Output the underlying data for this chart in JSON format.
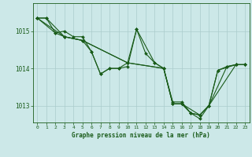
{
  "background_color": "#cce8e8",
  "grid_color": "#aacccc",
  "line_color": "#1a5c1a",
  "title": "Graphe pression niveau de la mer (hPa)",
  "xlim": [
    -0.5,
    23.5
  ],
  "ylim": [
    1012.55,
    1015.75
  ],
  "yticks": [
    1013,
    1014,
    1015
  ],
  "xticks": [
    0,
    1,
    2,
    3,
    4,
    5,
    6,
    7,
    8,
    9,
    10,
    11,
    12,
    13,
    14,
    15,
    16,
    17,
    18,
    19,
    20,
    21,
    22,
    23
  ],
  "series": [
    {
      "x": [
        0,
        1,
        2,
        3,
        4,
        5,
        6,
        7,
        8,
        9,
        10,
        11,
        12,
        13,
        14,
        15,
        16,
        17,
        18,
        19,
        20,
        21,
        22,
        23
      ],
      "y": [
        1015.35,
        1015.35,
        1014.95,
        1015.0,
        1014.85,
        1014.85,
        1014.45,
        1013.85,
        1014.0,
        1014.0,
        1014.05,
        1015.05,
        1014.4,
        1014.15,
        1014.0,
        1013.05,
        1013.05,
        1012.8,
        1012.75,
        1013.0,
        1013.95,
        1014.05,
        1014.1,
        1014.1
      ]
    },
    {
      "x": [
        0,
        1,
        3,
        5,
        6,
        7,
        8,
        9,
        10,
        11,
        13,
        14,
        15,
        16,
        17,
        18,
        19,
        20,
        22,
        23
      ],
      "y": [
        1015.35,
        1015.35,
        1014.85,
        1014.75,
        1014.45,
        1013.85,
        1014.0,
        1014.0,
        1014.15,
        1015.05,
        1014.15,
        1014.0,
        1013.1,
        1013.1,
        1012.8,
        1012.65,
        1013.0,
        1013.95,
        1014.1,
        1014.1
      ]
    },
    {
      "x": [
        0,
        2,
        3,
        5,
        10,
        14,
        15,
        16,
        18,
        19,
        22,
        23
      ],
      "y": [
        1015.35,
        1014.95,
        1014.85,
        1014.75,
        1014.15,
        1014.0,
        1013.05,
        1013.05,
        1012.75,
        1013.0,
        1014.1,
        1014.1
      ]
    },
    {
      "x": [
        0,
        3,
        5,
        10,
        14,
        15,
        16,
        17,
        18,
        19,
        21,
        22,
        23
      ],
      "y": [
        1015.35,
        1014.85,
        1014.75,
        1014.15,
        1014.0,
        1013.05,
        1013.05,
        1012.8,
        1012.75,
        1013.0,
        1014.05,
        1014.1,
        1014.1
      ]
    }
  ]
}
